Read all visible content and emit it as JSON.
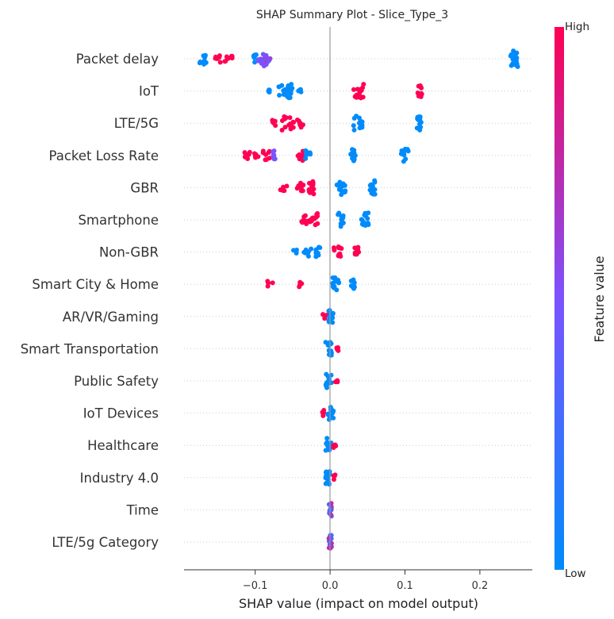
{
  "chart_data": {
    "type": "scatter",
    "title": "SHAP Summary Plot - Slice_Type_3",
    "xlabel": "SHAP value (impact on model output)",
    "xlim": [
      -0.195,
      0.27
    ],
    "xticks": [
      {
        "value": -0.1,
        "label": "−0.1"
      },
      {
        "value": 0.0,
        "label": "0.0"
      },
      {
        "value": 0.1,
        "label": "0.1"
      },
      {
        "value": 0.2,
        "label": "0.2"
      }
    ],
    "colorbar": {
      "title": "Feature value",
      "high_label": "High",
      "low_label": "Low",
      "low_color": "#008bfb",
      "high_color": "#ff0052"
    },
    "zero_line": true,
    "features": [
      {
        "name": "Packet delay",
        "clusters": [
          {
            "x": -0.17,
            "n": 10,
            "spread": 0.006,
            "color": "low"
          },
          {
            "x": -0.15,
            "n": 8,
            "spread": 0.004,
            "color": "high"
          },
          {
            "x": -0.14,
            "n": 5,
            "spread": 0.004,
            "color": "high"
          },
          {
            "x": -0.132,
            "n": 4,
            "spread": 0.003,
            "color": "high"
          },
          {
            "x": -0.1,
            "n": 6,
            "spread": 0.004,
            "color": "low"
          },
          {
            "x": -0.088,
            "n": 18,
            "spread": 0.008,
            "color": "mid"
          },
          {
            "x": 0.247,
            "n": 18,
            "spread": 0.006,
            "color": "low"
          }
        ]
      },
      {
        "name": "IoT",
        "clusters": [
          {
            "x": -0.08,
            "n": 4,
            "spread": 0.003,
            "color": "low"
          },
          {
            "x": -0.062,
            "n": 10,
            "spread": 0.008,
            "color": "low"
          },
          {
            "x": -0.054,
            "n": 14,
            "spread": 0.004,
            "color": "low"
          },
          {
            "x": -0.04,
            "n": 6,
            "spread": 0.003,
            "color": "low"
          },
          {
            "x": 0.038,
            "n": 14,
            "spread": 0.007,
            "color": "high"
          },
          {
            "x": 0.12,
            "n": 12,
            "spread": 0.003,
            "color": "high"
          }
        ]
      },
      {
        "name": "LTE/5G",
        "clusters": [
          {
            "x": -0.075,
            "n": 5,
            "spread": 0.003,
            "color": "high"
          },
          {
            "x": -0.055,
            "n": 14,
            "spread": 0.01,
            "color": "high"
          },
          {
            "x": -0.04,
            "n": 8,
            "spread": 0.004,
            "color": "high"
          },
          {
            "x": 0.037,
            "n": 14,
            "spread": 0.006,
            "color": "low"
          },
          {
            "x": 0.119,
            "n": 14,
            "spread": 0.003,
            "color": "low"
          }
        ]
      },
      {
        "name": "Packet Loss Rate",
        "clusters": [
          {
            "x": -0.11,
            "n": 6,
            "spread": 0.004,
            "color": "high"
          },
          {
            "x": -0.098,
            "n": 6,
            "spread": 0.003,
            "color": "high"
          },
          {
            "x": -0.085,
            "n": 8,
            "spread": 0.005,
            "color": "high"
          },
          {
            "x": -0.075,
            "n": 8,
            "spread": 0.003,
            "color": "mid"
          },
          {
            "x": -0.04,
            "n": 10,
            "spread": 0.004,
            "color": "high"
          },
          {
            "x": -0.03,
            "n": 8,
            "spread": 0.004,
            "color": "low"
          },
          {
            "x": 0.03,
            "n": 12,
            "spread": 0.004,
            "color": "low"
          },
          {
            "x": 0.1,
            "n": 12,
            "spread": 0.005,
            "color": "low"
          }
        ]
      },
      {
        "name": "GBR",
        "clusters": [
          {
            "x": -0.062,
            "n": 6,
            "spread": 0.005,
            "color": "high"
          },
          {
            "x": -0.04,
            "n": 8,
            "spread": 0.006,
            "color": "high"
          },
          {
            "x": -0.025,
            "n": 12,
            "spread": 0.004,
            "color": "high"
          },
          {
            "x": 0.015,
            "n": 14,
            "spread": 0.006,
            "color": "low"
          },
          {
            "x": 0.056,
            "n": 14,
            "spread": 0.004,
            "color": "low"
          }
        ]
      },
      {
        "name": "Smartphone",
        "clusters": [
          {
            "x": -0.035,
            "n": 8,
            "spread": 0.004,
            "color": "high"
          },
          {
            "x": -0.022,
            "n": 14,
            "spread": 0.006,
            "color": "high"
          },
          {
            "x": 0.014,
            "n": 14,
            "spread": 0.004,
            "color": "low"
          },
          {
            "x": 0.047,
            "n": 14,
            "spread": 0.005,
            "color": "low"
          }
        ]
      },
      {
        "name": "Non-GBR",
        "clusters": [
          {
            "x": -0.045,
            "n": 4,
            "spread": 0.004,
            "color": "low"
          },
          {
            "x": -0.03,
            "n": 8,
            "spread": 0.006,
            "color": "low"
          },
          {
            "x": -0.016,
            "n": 10,
            "spread": 0.003,
            "color": "low"
          },
          {
            "x": 0.011,
            "n": 10,
            "spread": 0.006,
            "color": "high"
          },
          {
            "x": 0.036,
            "n": 8,
            "spread": 0.003,
            "color": "high"
          }
        ]
      },
      {
        "name": "Smart City & Home",
        "clusters": [
          {
            "x": -0.08,
            "n": 4,
            "spread": 0.004,
            "color": "high"
          },
          {
            "x": -0.04,
            "n": 4,
            "spread": 0.003,
            "color": "high"
          },
          {
            "x": 0.007,
            "n": 14,
            "spread": 0.005,
            "color": "low"
          },
          {
            "x": 0.03,
            "n": 8,
            "spread": 0.003,
            "color": "low"
          }
        ]
      },
      {
        "name": "AR/VR/Gaming",
        "clusters": [
          {
            "x": -0.008,
            "n": 4,
            "spread": 0.004,
            "color": "high"
          },
          {
            "x": 0.002,
            "n": 14,
            "spread": 0.004,
            "color": "low"
          }
        ]
      },
      {
        "name": "Smart Transportation",
        "clusters": [
          {
            "x": -0.002,
            "n": 14,
            "spread": 0.004,
            "color": "low"
          },
          {
            "x": 0.009,
            "n": 4,
            "spread": 0.002,
            "color": "high"
          }
        ]
      },
      {
        "name": "Public Safety",
        "clusters": [
          {
            "x": -0.002,
            "n": 14,
            "spread": 0.004,
            "color": "low"
          },
          {
            "x": 0.009,
            "n": 4,
            "spread": 0.002,
            "color": "high"
          }
        ]
      },
      {
        "name": "IoT Devices",
        "clusters": [
          {
            "x": -0.009,
            "n": 4,
            "spread": 0.002,
            "color": "high"
          },
          {
            "x": 0.001,
            "n": 14,
            "spread": 0.004,
            "color": "low"
          }
        ]
      },
      {
        "name": "Healthcare",
        "clusters": [
          {
            "x": -0.002,
            "n": 14,
            "spread": 0.004,
            "color": "low"
          },
          {
            "x": 0.006,
            "n": 4,
            "spread": 0.002,
            "color": "high"
          }
        ]
      },
      {
        "name": "Industry 4.0",
        "clusters": [
          {
            "x": -0.002,
            "n": 14,
            "spread": 0.004,
            "color": "low"
          },
          {
            "x": 0.006,
            "n": 4,
            "spread": 0.002,
            "color": "high"
          }
        ]
      },
      {
        "name": "Time",
        "clusters": [
          {
            "x": 0.0,
            "n": 14,
            "spread": 0.002,
            "color": "mixed"
          }
        ]
      },
      {
        "name": "LTE/5g Category",
        "clusters": [
          {
            "x": 0.0,
            "n": 16,
            "spread": 0.002,
            "color": "mixed"
          }
        ]
      }
    ]
  }
}
